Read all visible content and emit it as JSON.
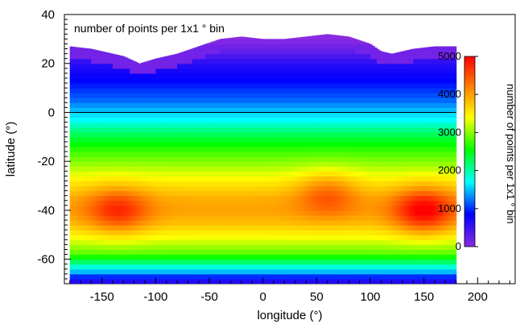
{
  "chart_data": {
    "type": "heatmap",
    "title": "",
    "annotation": "number of points per 1x1 ° bin",
    "xlabel": "longitude (°)",
    "ylabel": "latitude (°)",
    "colorbar_label": "number of points per 1x1 ° bin",
    "xlim": [
      -185,
      235
    ],
    "ylim": [
      -70,
      40
    ],
    "xticks": [
      -150,
      -100,
      -50,
      0,
      50,
      100,
      150,
      200
    ],
    "yticks": [
      -60,
      -40,
      -20,
      0,
      20,
      40
    ],
    "colorbar_range": [
      0,
      5000
    ],
    "colorbar_ticks": [
      0,
      1000,
      2000,
      3000,
      4000,
      5000
    ],
    "colormap": [
      "#8a2be2",
      "#0000ff",
      "#00ffff",
      "#00ff00",
      "#ffff00",
      "#ff8000",
      "#ff0000"
    ],
    "reference_line_latitude": 0,
    "data_longitude_range": [
      -180,
      180
    ],
    "latitude_profile": {
      "lat": [
        -70,
        -68,
        -66,
        -62,
        -58,
        -52,
        -45,
        -40,
        -35,
        -28,
        -22,
        -15,
        -8,
        -3,
        0,
        5,
        12,
        20,
        26,
        30
      ],
      "count": [
        600,
        700,
        1300,
        2000,
        2800,
        3300,
        3800,
        4000,
        3900,
        3500,
        3100,
        2700,
        2200,
        1700,
        1550,
        1200,
        900,
        600,
        200,
        0
      ]
    },
    "northern_edge": {
      "lon": [
        -180,
        -160,
        -140,
        -130,
        -120,
        -115,
        -100,
        -80,
        -60,
        -40,
        -20,
        0,
        20,
        40,
        60,
        80,
        100,
        110,
        120,
        140,
        160,
        180
      ],
      "lat": [
        27,
        26,
        24,
        23,
        21,
        20,
        22,
        24,
        27,
        30,
        31,
        30,
        30,
        31,
        32,
        31,
        28,
        25,
        24,
        26,
        27,
        27
      ]
    },
    "hotspots": [
      {
        "lon": -135,
        "lat": -40,
        "peak": 4700
      },
      {
        "lon": 60,
        "lat": -33,
        "peak": 4500
      },
      {
        "lon": 150,
        "lat": -40,
        "peak": 5000
      }
    ]
  }
}
